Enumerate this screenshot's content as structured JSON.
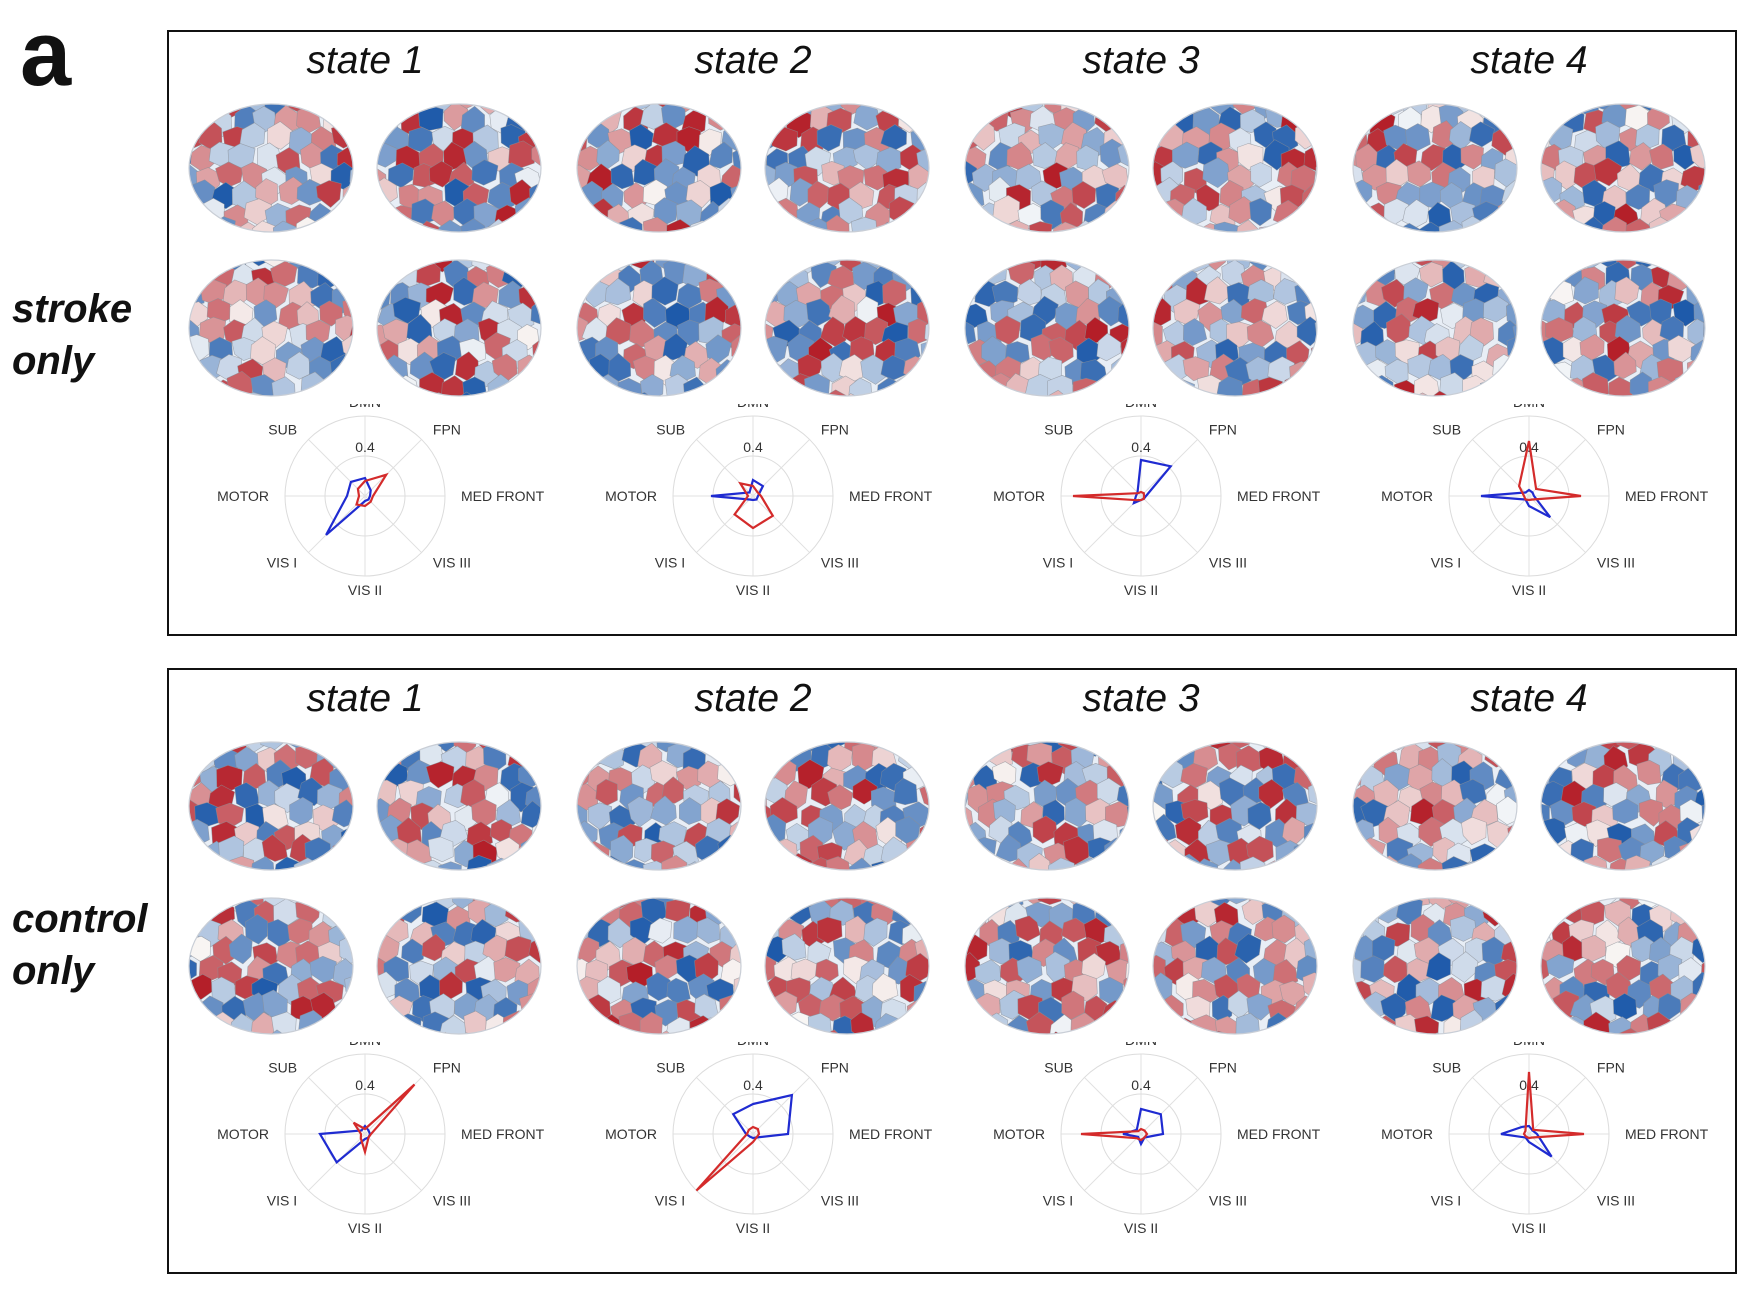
{
  "figure": {
    "panel_letter": "a"
  },
  "axes": [
    "DMN",
    "FPN",
    "MED FRONT",
    "VIS III",
    "VIS II",
    "VIS I",
    "MOTOR",
    "SUB"
  ],
  "radial_tick_label": "0.4",
  "colors": {
    "positive": "#d42b2b",
    "negative": "#1f2bd1",
    "brain_red": "#c0282a",
    "brain_blue": "#2a66b0"
  },
  "groups": [
    {
      "label_line1": "stroke",
      "label_line2": "only",
      "states": [
        {
          "title": "state 1",
          "red": [
            0.15,
            0.3,
            0.08,
            0.08,
            0.1,
            0.12,
            0.06,
            0.1
          ],
          "blue": [
            0.18,
            0.08,
            0.05,
            0.05,
            0.05,
            0.55,
            0.18,
            0.2
          ]
        },
        {
          "title": "state 2",
          "red": [
            0.1,
            0.06,
            0.08,
            0.28,
            0.32,
            0.26,
            0.05,
            0.18
          ],
          "blue": [
            0.16,
            0.14,
            0.05,
            0.05,
            0.04,
            0.05,
            0.42,
            0.05
          ]
        },
        {
          "title": "state 3",
          "red": [
            0.04,
            0.04,
            0.03,
            0.04,
            0.04,
            0.06,
            0.68,
            0.04
          ],
          "blue": [
            0.36,
            0.42,
            0.05,
            0.04,
            0.04,
            0.1,
            0.05,
            0.05
          ]
        },
        {
          "title": "state 4",
          "red": [
            0.55,
            0.1,
            0.52,
            0.05,
            0.04,
            0.05,
            0.05,
            0.14
          ],
          "blue": [
            0.06,
            0.05,
            0.05,
            0.3,
            0.1,
            0.05,
            0.48,
            0.05
          ]
        }
      ]
    },
    {
      "label_line1": "control",
      "label_line2": "only",
      "states": [
        {
          "title": "state 1",
          "red": [
            0.05,
            0.7,
            0.06,
            0.05,
            0.18,
            0.06,
            0.04,
            0.16
          ],
          "blue": [
            0.08,
            0.05,
            0.05,
            0.05,
            0.05,
            0.4,
            0.45,
            0.05
          ]
        },
        {
          "title": "state 2",
          "red": [
            0.07,
            0.07,
            0.06,
            0.05,
            0.08,
            0.95,
            0.06,
            0.06
          ],
          "blue": [
            0.3,
            0.55,
            0.35,
            0.05,
            0.04,
            0.04,
            0.07,
            0.28
          ]
        },
        {
          "title": "state 3",
          "red": [
            0.05,
            0.05,
            0.06,
            0.05,
            0.06,
            0.06,
            0.6,
            0.04
          ],
          "blue": [
            0.25,
            0.28,
            0.22,
            0.05,
            0.1,
            0.04,
            0.18,
            0.06
          ]
        },
        {
          "title": "state 4",
          "red": [
            0.62,
            0.06,
            0.55,
            0.05,
            0.04,
            0.04,
            0.05,
            0.05
          ],
          "blue": [
            0.08,
            0.05,
            0.08,
            0.32,
            0.08,
            0.05,
            0.28,
            0.1
          ]
        }
      ]
    }
  ]
}
